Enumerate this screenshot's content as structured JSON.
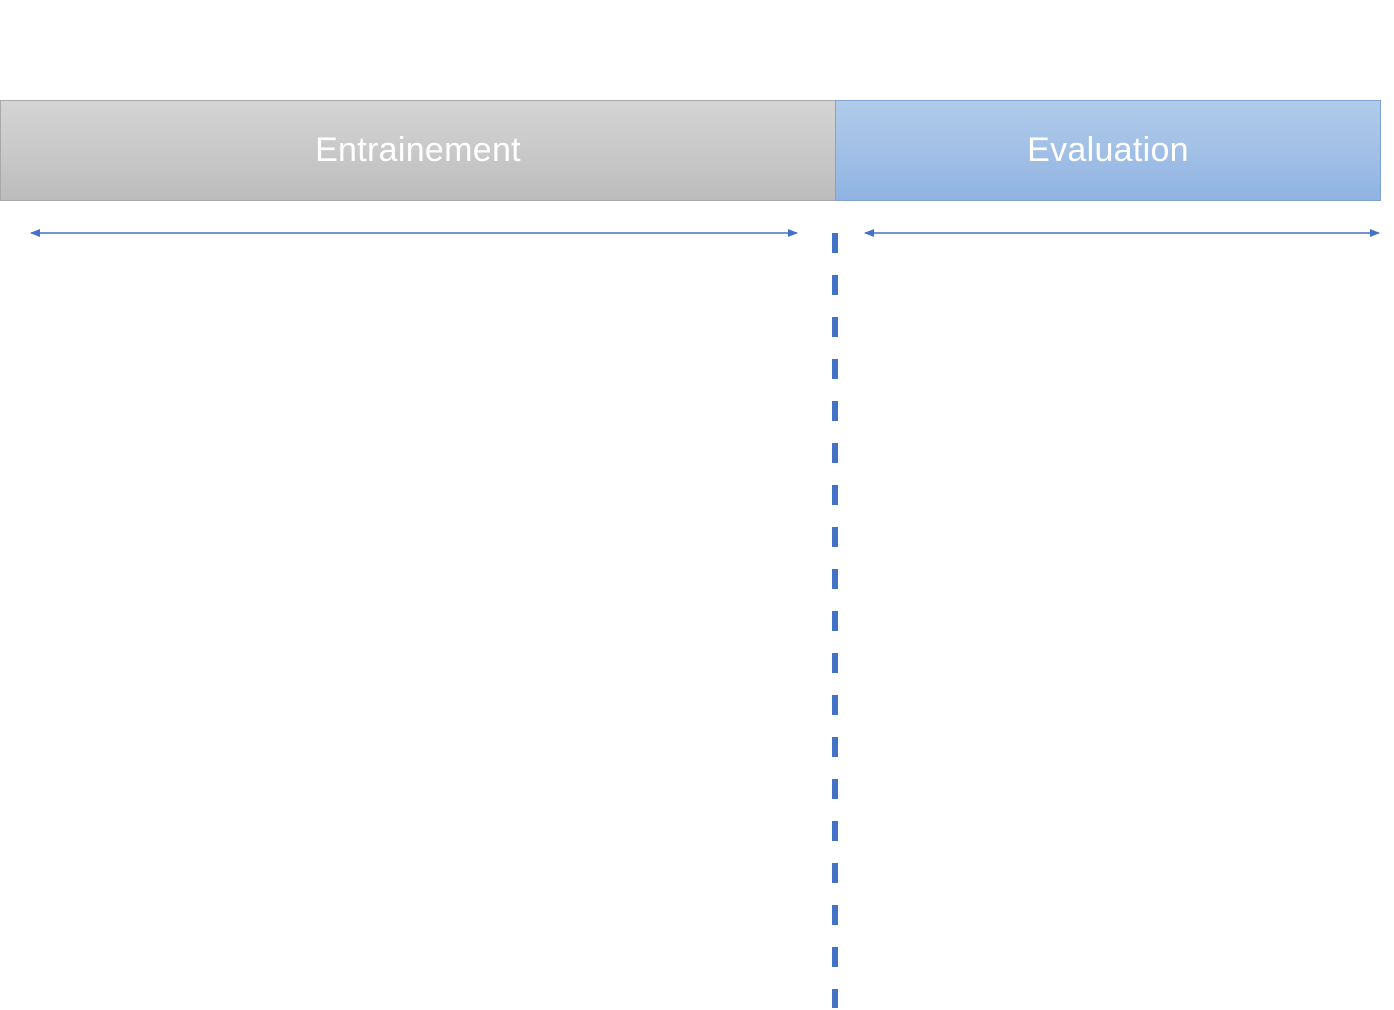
{
  "diagram": {
    "training_label": "Entrainement",
    "evaluation_label": "Evaluation",
    "colors": {
      "training_fill": "#c9c9c9",
      "evaluation_fill": "#a2c0e6",
      "arrow_and_divider": "#4472c4",
      "text": "#ffffff"
    }
  }
}
